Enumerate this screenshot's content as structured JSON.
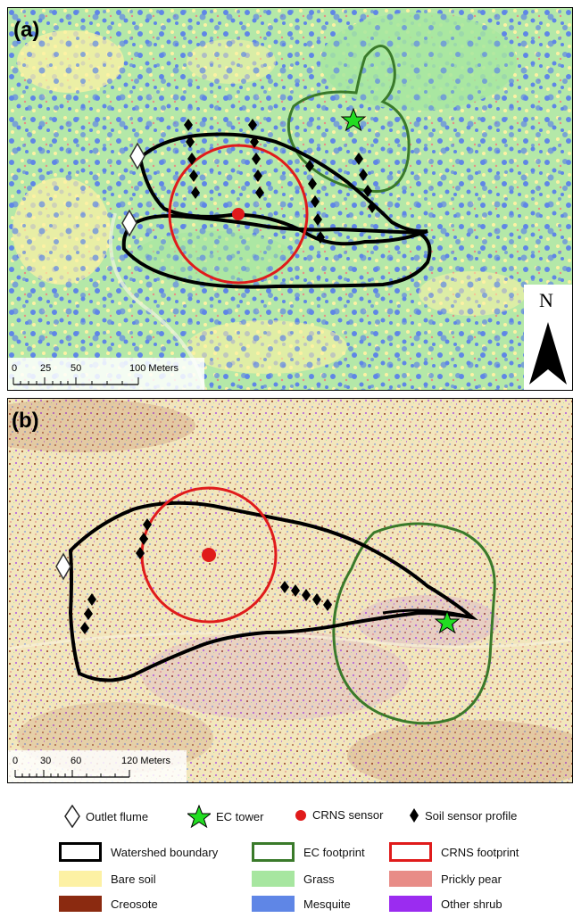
{
  "panel_a": {
    "label": "(a)",
    "north_label": "N",
    "scale_labels": [
      "0",
      "25",
      "50",
      "100 Meters"
    ]
  },
  "panel_b": {
    "label": "(b)",
    "scale_labels": [
      "0",
      "30",
      "60",
      "120 Meters"
    ]
  },
  "legend": {
    "outlet_flume": "Outlet flume",
    "ec_tower": "EC tower",
    "crns_sensor": "CRNS sensor",
    "soil_sensor_profile": "Soil sensor profile",
    "watershed_boundary": "Watershed boundary",
    "ec_footprint": "EC footprint",
    "crns_footprint": "CRNS footprint",
    "bare_soil": "Bare soil",
    "grass": "Grass",
    "prickly_pear": "Prickly pear",
    "creosote": "Creosote",
    "mesquite": "Mesquite",
    "other_shrub": "Other shrub"
  },
  "colors": {
    "bare_soil": "#fdf1a4",
    "grass": "#a7e6a0",
    "prickly_pear": "#e88c87",
    "creosote": "#8b2a10",
    "mesquite": "#5f86e6",
    "other_shrub": "#9b2cf0",
    "watershed_boundary": "#000000",
    "ec_footprint": "#3a7a2a",
    "crns_footprint": "#e01b1b",
    "crns_sensor": "#e01b1b",
    "ec_tower": "#22dd22"
  }
}
